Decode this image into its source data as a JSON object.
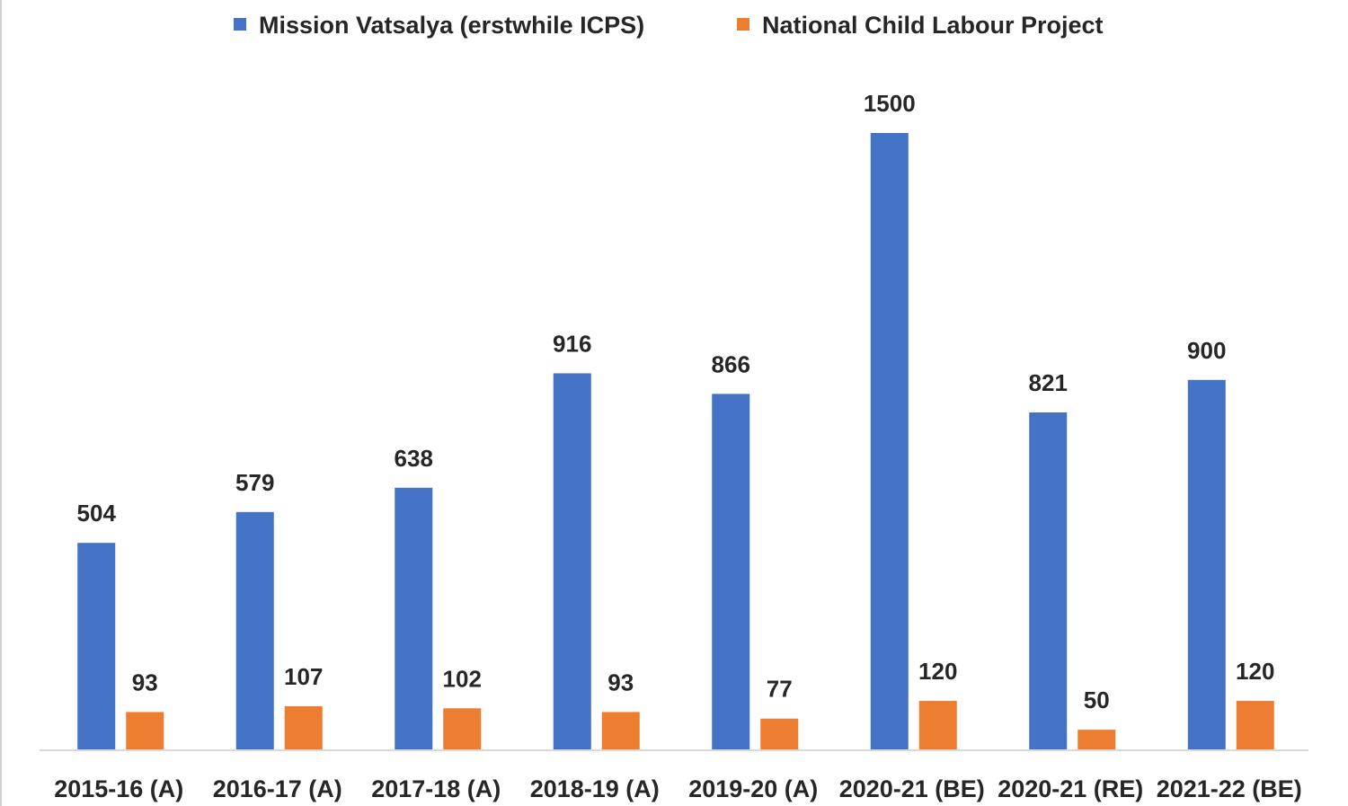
{
  "chart_data": {
    "type": "bar",
    "title": "",
    "xlabel": "",
    "ylabel": "",
    "ylim": [
      0,
      1500
    ],
    "grid": false,
    "legend_position": "top",
    "categories": [
      "2015-16 (A)",
      "2016-17 (A)",
      "2017-18 (A)",
      "2018-19 (A)",
      "2019-20 (A)",
      "2020-21 (BE)",
      "2020-21 (RE)",
      "2021-22 (BE)"
    ],
    "series": [
      {
        "name": "Mission Vatsalya (erstwhile ICPS)",
        "color": "#4472C4",
        "values": [
          504,
          579,
          638,
          916,
          866,
          1500,
          821,
          900
        ]
      },
      {
        "name": "National Child Labour Project",
        "color": "#ED7D31",
        "values": [
          93,
          107,
          102,
          93,
          77,
          120,
          50,
          120
        ]
      }
    ],
    "data_labels": true
  }
}
